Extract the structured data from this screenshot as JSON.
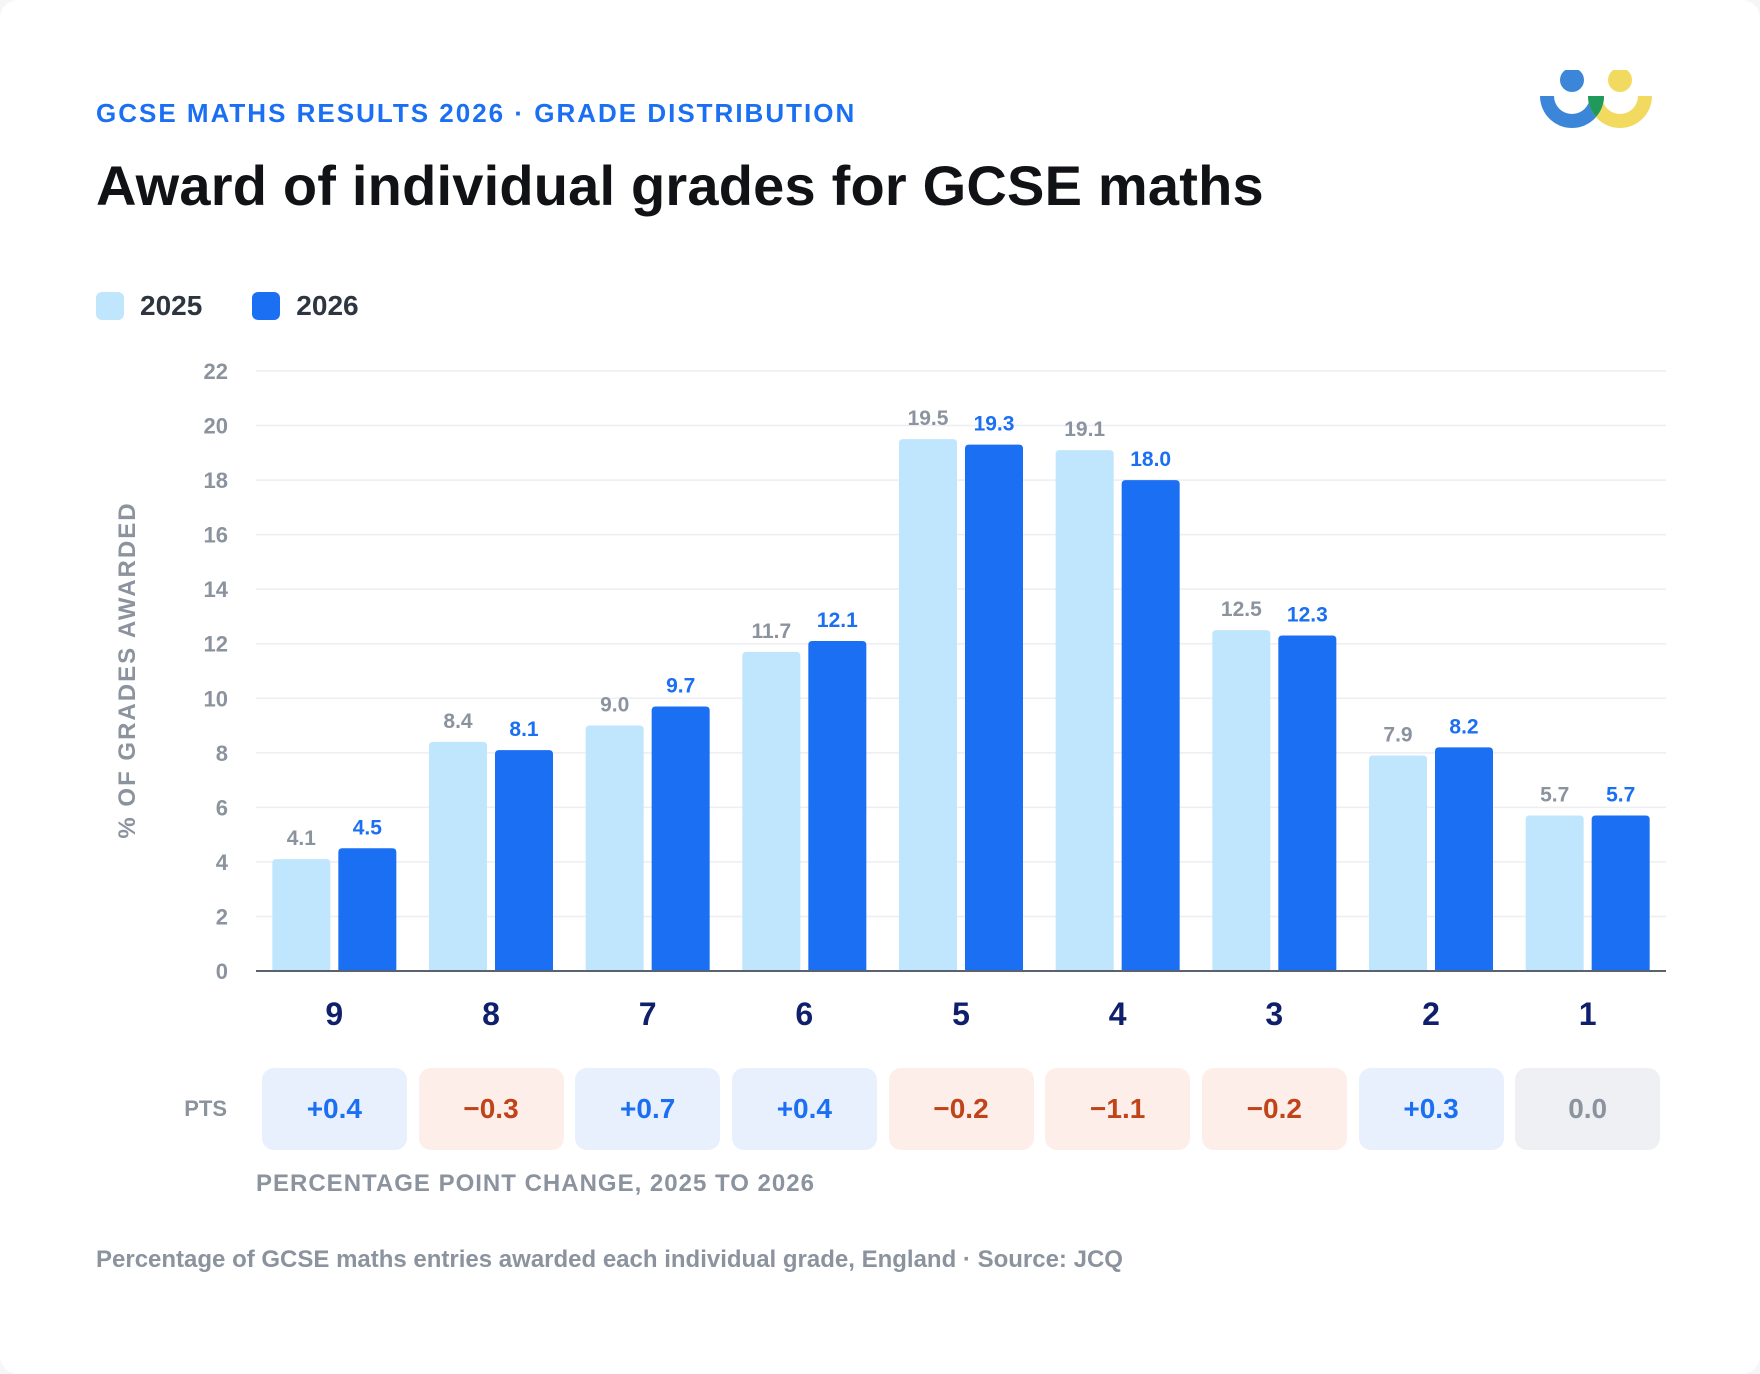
{
  "header": {
    "kicker": "GCSE MATHS RESULTS 2026 · GRADE DISTRIBUTION",
    "title": "Award of individual grades for GCSE maths"
  },
  "legend": {
    "items": [
      {
        "label": "2025",
        "color": "#bfe6fd"
      },
      {
        "label": "2026",
        "color": "#1a6ff2"
      }
    ]
  },
  "chart_data": {
    "type": "bar",
    "title": "Award of individual grades for GCSE maths",
    "xlabel": "",
    "ylabel": "% OF GRADES AWARDED",
    "ylim": [
      0,
      22
    ],
    "yticks": [
      0,
      2,
      4,
      6,
      8,
      10,
      12,
      14,
      16,
      18,
      20,
      22
    ],
    "grid": true,
    "legend_position": "top-left",
    "categories": [
      "9",
      "8",
      "7",
      "6",
      "5",
      "4",
      "3",
      "2",
      "1"
    ],
    "series": [
      {
        "name": "2025",
        "color": "#bfe6fd",
        "label_color": "#8b939e",
        "values": [
          4.1,
          8.4,
          9.0,
          11.7,
          19.5,
          19.1,
          12.5,
          7.9,
          5.7
        ]
      },
      {
        "name": "2026",
        "color": "#1a6ff2",
        "label_color": "#1a6ff2",
        "values": [
          4.5,
          8.1,
          9.7,
          12.1,
          19.3,
          18.0,
          12.3,
          8.2,
          5.7
        ]
      }
    ],
    "change": {
      "label": "PTS",
      "caption": "PERCENTAGE POINT CHANGE, 2025 TO 2026",
      "values": [
        "+0.4",
        "−0.3",
        "+0.7",
        "+0.4",
        "−0.2",
        "−1.1",
        "−0.2",
        "+0.3",
        "0.0"
      ]
    }
  },
  "footer": {
    "note": "Percentage of GCSE maths entries awarded each individual grade, England · Source: JCQ"
  },
  "colors": {
    "accent": "#1a6ff2",
    "positive_bg": "#e8f0fd",
    "negative_bg": "#fdeeea",
    "negative_text": "#c0441a",
    "logo_blue": "#3b86d9",
    "logo_yellow": "#f1da5f",
    "logo_green": "#1f9a5a"
  }
}
